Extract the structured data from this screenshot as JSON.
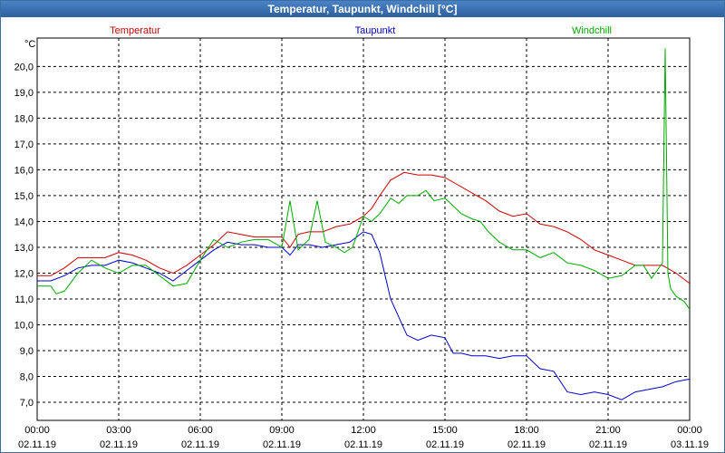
{
  "window": {
    "title": "Temperatur, Taupunkt, Windchill [°C]"
  },
  "chart_data": {
    "type": "line",
    "title": "Temperatur, Taupunkt, Windchill [°C]",
    "ylabel": "°C",
    "ylim": [
      6.3,
      21.1
    ],
    "xlim": [
      0,
      24
    ],
    "grid": true,
    "yticks": [
      7,
      8,
      9,
      10,
      11,
      12,
      13,
      14,
      15,
      16,
      17,
      18,
      19,
      20
    ],
    "yticklabels": [
      "7,0",
      "8,0",
      "9,0",
      "10,0",
      "11,0",
      "12,0",
      "13,0",
      "14,0",
      "15,0",
      "16,0",
      "17,0",
      "18,0",
      "19,0",
      "20,0"
    ],
    "xticks": [
      0,
      3,
      6,
      9,
      12,
      15,
      18,
      21,
      24
    ],
    "xticklabels_time": [
      "00:00",
      "03:00",
      "06:00",
      "09:00",
      "12:00",
      "15:00",
      "18:00",
      "21:00",
      "00:00"
    ],
    "xticklabels_date": [
      "02.11.19",
      "02.11.19",
      "02.11.19",
      "02.11.19",
      "02.11.19",
      "02.11.19",
      "02.11.19",
      "02.11.19",
      "03.11.19"
    ],
    "series": [
      {
        "name": "Temperatur",
        "color": "#cc0000",
        "x": [
          0,
          0.5,
          1,
          1.5,
          2,
          2.5,
          3,
          3.5,
          4,
          4.5,
          5,
          5.5,
          6,
          6.5,
          7,
          7.5,
          8,
          8.5,
          9,
          9.3,
          9.6,
          10,
          10.5,
          11,
          11.5,
          12,
          12.3,
          12.6,
          13,
          13.5,
          14,
          14.5,
          15,
          15.5,
          16,
          16.5,
          17,
          17.5,
          18,
          18.5,
          19,
          19.5,
          20,
          20.5,
          21,
          21.5,
          22,
          22.5,
          23,
          23.5,
          24
        ],
        "y": [
          11.9,
          11.9,
          12.2,
          12.6,
          12.6,
          12.6,
          12.8,
          12.7,
          12.5,
          12.2,
          12.0,
          12.3,
          12.7,
          13.1,
          13.6,
          13.5,
          13.4,
          13.4,
          13.4,
          13.0,
          13.5,
          13.6,
          13.6,
          13.8,
          13.9,
          14.2,
          14.5,
          15.0,
          15.6,
          15.9,
          15.8,
          15.8,
          15.7,
          15.4,
          15.1,
          14.8,
          14.4,
          14.2,
          14.3,
          13.9,
          13.8,
          13.6,
          13.3,
          12.9,
          12.7,
          12.5,
          12.3,
          12.3,
          12.3,
          12.0,
          11.6
        ]
      },
      {
        "name": "Taupunkt",
        "color": "#0000cc",
        "x": [
          0,
          0.5,
          1,
          1.5,
          2,
          2.5,
          3,
          3.5,
          4,
          4.5,
          5,
          5.5,
          6,
          6.5,
          7,
          7.5,
          8,
          8.5,
          9,
          9.3,
          9.6,
          10,
          10.5,
          11,
          11.5,
          12,
          12.3,
          12.6,
          13,
          13.3,
          13.6,
          14,
          14.5,
          15,
          15.3,
          15.6,
          16,
          16.5,
          17,
          17.5,
          18,
          18.5,
          19,
          19.5,
          20,
          20.5,
          21,
          21.5,
          22,
          22.5,
          23,
          23.5,
          24
        ],
        "y": [
          11.7,
          11.7,
          11.9,
          12.2,
          12.3,
          12.3,
          12.5,
          12.4,
          12.2,
          12.0,
          11.7,
          12.1,
          12.5,
          12.9,
          13.2,
          13.1,
          13.1,
          13.0,
          13.0,
          12.7,
          13.1,
          13.1,
          13.0,
          13.1,
          13.2,
          13.6,
          13.5,
          12.8,
          11.0,
          10.3,
          9.6,
          9.4,
          9.6,
          9.5,
          8.9,
          8.9,
          8.8,
          8.8,
          8.7,
          8.8,
          8.8,
          8.3,
          8.2,
          7.4,
          7.3,
          7.4,
          7.3,
          7.1,
          7.4,
          7.5,
          7.6,
          7.8,
          7.9
        ]
      },
      {
        "name": "Windchill",
        "color": "#00aa00",
        "x": [
          0,
          0.5,
          0.7,
          1,
          1.5,
          2,
          2.5,
          3,
          3.5,
          4,
          4.5,
          5,
          5.5,
          6,
          6.5,
          7,
          7.5,
          8,
          8.5,
          9,
          9.3,
          9.6,
          10,
          10.3,
          10.6,
          11,
          11.3,
          11.6,
          12,
          12.3,
          12.6,
          13,
          13.3,
          13.6,
          14,
          14.3,
          14.6,
          15,
          15.3,
          15.6,
          16,
          16.3,
          16.6,
          17,
          17.5,
          18,
          18.5,
          19,
          19.5,
          20,
          20.5,
          21,
          21.5,
          22,
          22.3,
          22.6,
          23,
          23.1,
          23.2,
          23.3,
          23.5,
          23.8,
          24
        ],
        "y": [
          11.5,
          11.5,
          11.2,
          11.3,
          12.0,
          12.5,
          12.2,
          12.0,
          12.3,
          12.3,
          11.9,
          11.5,
          11.6,
          12.5,
          13.3,
          13.0,
          13.2,
          13.3,
          13.3,
          13.0,
          14.8,
          12.9,
          13.3,
          14.8,
          13.2,
          13.0,
          12.8,
          13.0,
          14.2,
          14.0,
          14.3,
          14.9,
          14.7,
          15.0,
          15.0,
          15.2,
          14.8,
          14.9,
          14.6,
          14.3,
          14.1,
          14.0,
          13.6,
          13.2,
          12.9,
          12.9,
          12.6,
          12.8,
          12.4,
          12.3,
          12.1,
          11.8,
          11.9,
          12.3,
          12.3,
          11.8,
          12.4,
          20.7,
          12.0,
          11.4,
          11.1,
          10.9,
          10.6
        ]
      }
    ]
  }
}
